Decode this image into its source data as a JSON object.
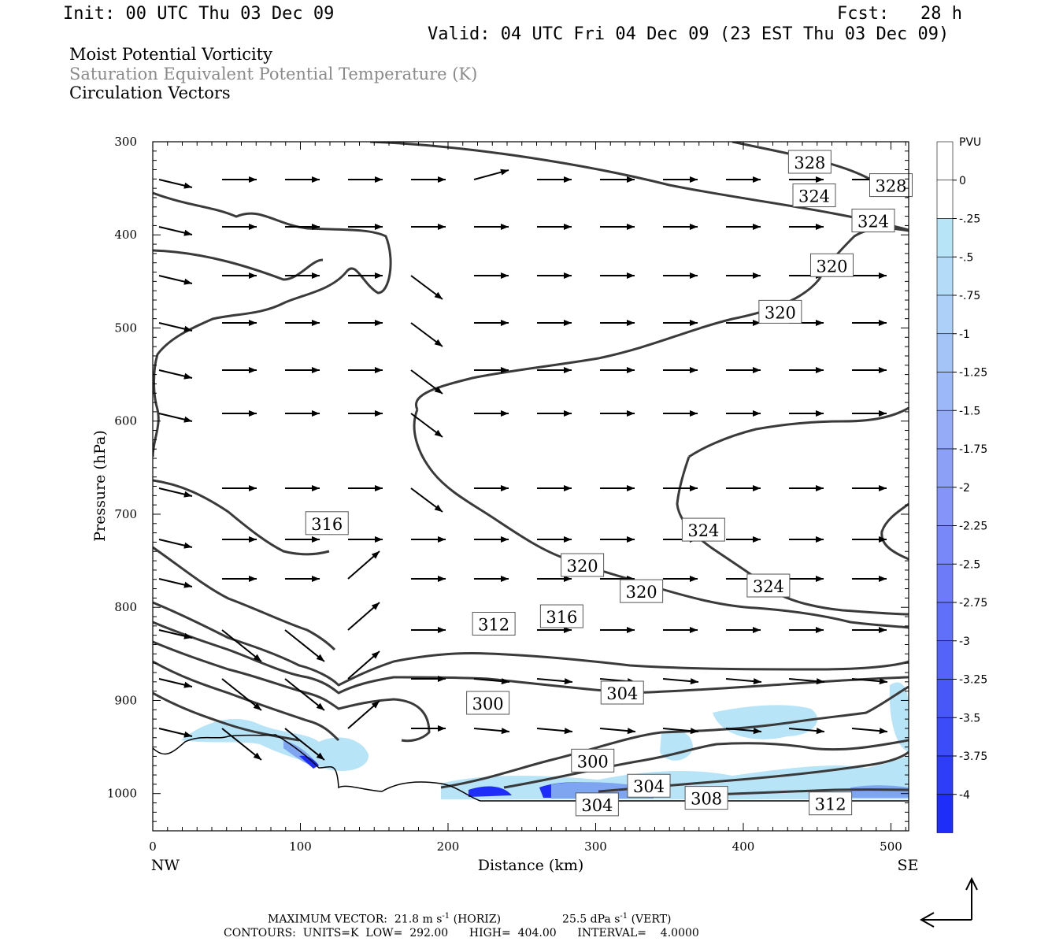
{
  "header": {
    "init": "Init: 00 UTC Thu 03 Dec 09",
    "fcst": "Fcst:   28 h",
    "valid": "Valid: 04 UTC Fri 04 Dec 09 (23 EST Thu 03 Dec 09)"
  },
  "titles": {
    "line1": "Moist Potential Vorticity",
    "line2": "Saturation Equivalent Potential Temperature (K)",
    "line3": "Circulation Vectors"
  },
  "footer": {
    "max_vector": "MAXIMUM VECTOR:  21.8 m s",
    "max_vector_sup": "-1",
    "max_vector_horiz": " (HORIZ)",
    "max_vector_vert": "25.5 dPa s",
    "max_vector_vert_sup": "-1",
    "max_vector_vert_tail": " (VERT)",
    "contours": "CONTOURS:  UNITS=K  LOW=  292.00      HIGH=  404.00      INTERVAL=    4.0000"
  },
  "chart_data": {
    "type": "cross-section",
    "xlabel": "Distance (km)",
    "ylabel": "Pressure (hPa)",
    "xlim": [
      0,
      512
    ],
    "ylim": [
      1040,
      300
    ],
    "x_ticks": [
      0,
      100,
      200,
      300,
      400,
      500
    ],
    "y_ticks": [
      300,
      400,
      500,
      600,
      700,
      800,
      900,
      1000
    ],
    "x_end_labels": {
      "left": "NW",
      "right": "SE"
    },
    "colorbar": {
      "unit": "PVU",
      "labels": [
        "0",
        "-.25",
        "-.5",
        "-.75",
        "-1",
        "-1.25",
        "-1.5",
        "-1.75",
        "-2",
        "-2.25",
        "-2.5",
        "-2.75",
        "-3",
        "-3.25",
        "-3.5",
        "-3.75",
        "-4"
      ],
      "colors": [
        "#ffffff",
        "#ffffff",
        "#b8e4f8",
        "#b4dcf8",
        "#acd0f8",
        "#a4c4f8",
        "#9cb8f8",
        "#94acf8",
        "#8ca0f8",
        "#8494f8",
        "#7888f8",
        "#6c7cf8",
        "#6070f8",
        "#5464f8",
        "#4858f8",
        "#3c4cf8",
        "#2e3ef8",
        "#1e2ef8"
      ]
    },
    "theta_contours": [
      {
        "label": "328",
        "x": 445,
        "p": 322
      },
      {
        "label": "328",
        "x": 500,
        "p": 347
      },
      {
        "label": "324",
        "x": 448,
        "p": 358
      },
      {
        "label": "324",
        "x": 488,
        "p": 385
      },
      {
        "label": "320",
        "x": 460,
        "p": 433
      },
      {
        "label": "320",
        "x": 425,
        "p": 483
      },
      {
        "label": "324",
        "x": 373,
        "p": 717
      },
      {
        "label": "324",
        "x": 417,
        "p": 777
      },
      {
        "label": "320",
        "x": 291,
        "p": 755
      },
      {
        "label": "320",
        "x": 331,
        "p": 783
      },
      {
        "label": "316",
        "x": 118,
        "p": 710
      },
      {
        "label": "316",
        "x": 277,
        "p": 810
      },
      {
        "label": "312",
        "x": 231,
        "p": 818
      },
      {
        "label": "304",
        "x": 318,
        "p": 892
      },
      {
        "label": "300",
        "x": 227,
        "p": 903
      },
      {
        "label": "300",
        "x": 298,
        "p": 965
      },
      {
        "label": "304",
        "x": 336,
        "p": 992
      },
      {
        "label": "304",
        "x": 301,
        "p": 1012
      },
      {
        "label": "308",
        "x": 375,
        "p": 1005
      },
      {
        "label": "312",
        "x": 459,
        "p": 1011
      }
    ],
    "wind_vectors_rows_hPa": [
      340,
      390,
      445,
      505,
      560,
      620,
      680,
      740,
      805,
      860,
      930
    ]
  }
}
